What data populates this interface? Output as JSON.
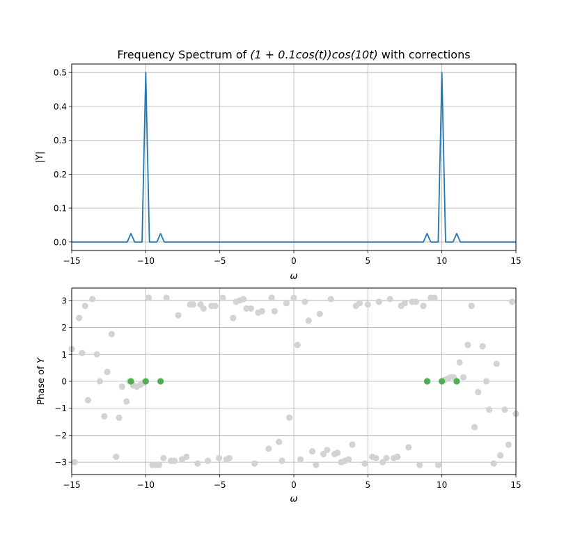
{
  "chart_data": [
    {
      "type": "line",
      "title_plain": "Frequency Spectrum of ",
      "title_math": "(1 + 0.1cos(t))cos(10t)",
      "title_tail": " with corrections",
      "xlabel": "ω",
      "ylabel": "|Y|",
      "xlim": [
        -15,
        15
      ],
      "ylim": [
        -0.025,
        0.525
      ],
      "grid": true,
      "xticks": [
        -15,
        -10,
        -5,
        0,
        5,
        10,
        15
      ],
      "xtick_labels": [
        "−15",
        "−10",
        "−5",
        "0",
        "5",
        "10",
        "15"
      ],
      "yticks": [
        0.0,
        0.1,
        0.2,
        0.3,
        0.4,
        0.5
      ],
      "ytick_labels": [
        "0.0",
        "0.1",
        "0.2",
        "0.3",
        "0.4",
        "0.5"
      ],
      "series": [
        {
          "color": "#1f77b4",
          "points": [
            [
              -15,
              0
            ],
            [
              -11.25,
              0
            ],
            [
              -11,
              0.025
            ],
            [
              -10.75,
              0
            ],
            [
              -10.25,
              0
            ],
            [
              -10,
              0.5
            ],
            [
              -9.75,
              0
            ],
            [
              -9.25,
              0
            ],
            [
              -9,
              0.025
            ],
            [
              -8.75,
              0
            ],
            [
              8.75,
              0
            ],
            [
              9,
              0.025
            ],
            [
              9.25,
              0
            ],
            [
              9.75,
              0
            ],
            [
              10,
              0.5
            ],
            [
              10.25,
              0
            ],
            [
              10.75,
              0
            ],
            [
              11,
              0.025
            ],
            [
              11.25,
              0
            ],
            [
              15,
              0
            ]
          ]
        }
      ]
    },
    {
      "type": "scatter",
      "xlabel": "ω",
      "ylabel_plain": "Phase of ",
      "ylabel_math": "Y",
      "xlim": [
        -15,
        15
      ],
      "ylim": [
        -3.46,
        3.46
      ],
      "grid": true,
      "xticks": [
        -15,
        -10,
        -5,
        0,
        5,
        10,
        15
      ],
      "xtick_labels": [
        "−15",
        "−10",
        "−5",
        "0",
        "5",
        "10",
        "15"
      ],
      "yticks": [
        -3,
        -2,
        -1,
        0,
        1,
        2,
        3
      ],
      "ytick_labels": [
        "−3",
        "−2",
        "−1",
        "0",
        "1",
        "2",
        "3"
      ],
      "series": [
        {
          "color": "#d3d3d3",
          "points": [
            [
              -15.0,
              1.2
            ],
            [
              -14.8,
              -3.0
            ],
            [
              -14.5,
              2.35
            ],
            [
              -14.3,
              1.05
            ],
            [
              -14.1,
              2.8
            ],
            [
              -13.9,
              -0.7
            ],
            [
              -13.6,
              3.05
            ],
            [
              -13.3,
              1.0
            ],
            [
              -13.1,
              0.0
            ],
            [
              -12.8,
              -1.3
            ],
            [
              -12.6,
              0.35
            ],
            [
              -12.3,
              1.75
            ],
            [
              -12.0,
              -2.8
            ],
            [
              -11.8,
              -1.35
            ],
            [
              -11.6,
              -0.2
            ],
            [
              -11.3,
              -0.75
            ],
            [
              -11.1,
              0.0
            ],
            [
              -10.85,
              -0.15
            ],
            [
              -10.6,
              -0.2
            ],
            [
              -10.35,
              -0.12
            ],
            [
              -10.15,
              -0.05
            ],
            [
              -9.8,
              3.1
            ],
            [
              -9.55,
              -3.1
            ],
            [
              -9.3,
              -3.1
            ],
            [
              -9.1,
              -3.1
            ],
            [
              -8.8,
              -2.85
            ],
            [
              -8.6,
              3.1
            ],
            [
              -8.3,
              -2.95
            ],
            [
              -8.05,
              -2.95
            ],
            [
              -7.8,
              2.45
            ],
            [
              -7.55,
              -2.9
            ],
            [
              -7.25,
              -2.8
            ],
            [
              -7.0,
              2.85
            ],
            [
              -6.8,
              2.85
            ],
            [
              -6.5,
              -3.05
            ],
            [
              -6.3,
              2.85
            ],
            [
              -6.1,
              2.7
            ],
            [
              -5.8,
              -2.95
            ],
            [
              -5.55,
              2.8
            ],
            [
              -5.3,
              2.8
            ],
            [
              -5.05,
              -2.85
            ],
            [
              -4.8,
              3.1
            ],
            [
              -4.55,
              -2.9
            ],
            [
              -4.35,
              -2.85
            ],
            [
              -4.1,
              2.35
            ],
            [
              -3.9,
              2.95
            ],
            [
              -3.65,
              3.0
            ],
            [
              -3.4,
              3.05
            ],
            [
              -3.2,
              2.7
            ],
            [
              -2.9,
              2.7
            ],
            [
              -2.65,
              -3.05
            ],
            [
              -2.4,
              2.55
            ],
            [
              -2.15,
              2.6
            ],
            [
              -1.7,
              -2.5
            ],
            [
              -1.5,
              3.1
            ],
            [
              -1.3,
              2.6
            ],
            [
              -1.0,
              -2.25
            ],
            [
              -0.8,
              -2.95
            ],
            [
              -0.5,
              2.9
            ],
            [
              -0.3,
              -1.35
            ],
            [
              0.0,
              3.1
            ],
            [
              0.25,
              1.35
            ],
            [
              0.45,
              -2.9
            ],
            [
              0.75,
              2.95
            ],
            [
              1.0,
              2.25
            ],
            [
              1.25,
              -2.6
            ],
            [
              1.5,
              -3.1
            ],
            [
              1.75,
              2.5
            ],
            [
              2.0,
              -2.7
            ],
            [
              2.25,
              -2.55
            ],
            [
              2.5,
              3.05
            ],
            [
              2.75,
              -2.7
            ],
            [
              2.95,
              -2.65
            ],
            [
              3.2,
              -3.0
            ],
            [
              3.45,
              -2.95
            ],
            [
              3.7,
              -2.9
            ],
            [
              3.95,
              -2.35
            ],
            [
              4.2,
              2.8
            ],
            [
              4.45,
              2.9
            ],
            [
              4.8,
              -3.05
            ],
            [
              5.0,
              2.85
            ],
            [
              5.3,
              -2.8
            ],
            [
              5.55,
              -2.85
            ],
            [
              5.75,
              2.95
            ],
            [
              6.0,
              -3.0
            ],
            [
              6.25,
              -2.85
            ],
            [
              6.5,
              3.05
            ],
            [
              6.75,
              -2.85
            ],
            [
              7.0,
              -2.8
            ],
            [
              7.25,
              2.8
            ],
            [
              7.5,
              2.9
            ],
            [
              7.75,
              -2.45
            ],
            [
              8.0,
              2.95
            ],
            [
              8.25,
              2.95
            ],
            [
              8.5,
              -3.1
            ],
            [
              8.75,
              2.8
            ],
            [
              9.05,
              0.0
            ],
            [
              9.25,
              3.1
            ],
            [
              9.5,
              3.1
            ],
            [
              9.75,
              -3.1
            ],
            [
              10.0,
              0.0
            ],
            [
              10.2,
              0.05
            ],
            [
              10.4,
              0.1
            ],
            [
              10.6,
              0.15
            ],
            [
              10.8,
              0.15
            ],
            [
              11.0,
              0.0
            ],
            [
              11.2,
              0.7
            ],
            [
              11.45,
              0.15
            ],
            [
              11.75,
              1.35
            ],
            [
              12.0,
              2.8
            ],
            [
              12.2,
              -1.7
            ],
            [
              12.45,
              -0.4
            ],
            [
              12.75,
              1.3
            ],
            [
              13.0,
              0.0
            ],
            [
              13.2,
              -1.05
            ],
            [
              13.5,
              -3.05
            ],
            [
              13.7,
              0.65
            ],
            [
              13.95,
              -2.75
            ],
            [
              14.25,
              -1.05
            ],
            [
              14.5,
              -2.35
            ],
            [
              14.75,
              2.95
            ],
            [
              15.0,
              -1.2
            ]
          ]
        },
        {
          "color": "#4caf50",
          "points": [
            [
              -11,
              0
            ],
            [
              -10,
              0
            ],
            [
              -9,
              0
            ],
            [
              9,
              0
            ],
            [
              10,
              0
            ],
            [
              11,
              0
            ]
          ]
        }
      ]
    }
  ]
}
